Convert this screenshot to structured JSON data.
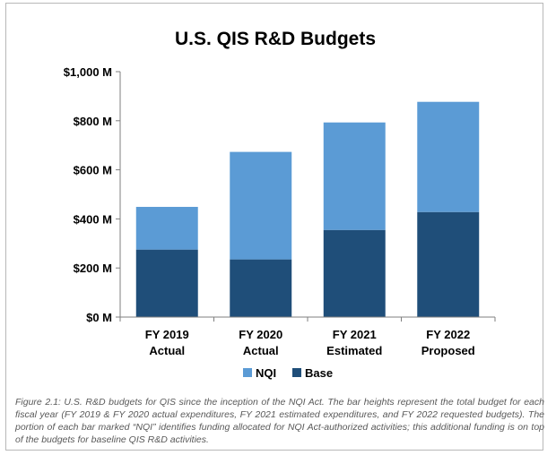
{
  "caption": "Figure 2.1: U.S. R&D budgets for QIS since the inception of the NQI Act. The bar heights represent the total budget for each fiscal year (FY 2019 & FY 2020 actual expenditures, FY 2021 estimated expenditures, and FY 2022 requested budgets). The portion of each bar marked “NQI” identifies funding allocated for NQI Act-authorized activities; this additional funding is on top of the budgets for baseline QIS R&D activities.",
  "chart_data": {
    "type": "bar",
    "stacked": true,
    "title": "U.S. QIS R&D Budgets",
    "categories": [
      [
        "FY 2019",
        "Actual"
      ],
      [
        "FY 2020",
        "Actual"
      ],
      [
        "FY 2021",
        "Estimated"
      ],
      [
        "FY 2022",
        "Proposed"
      ]
    ],
    "series": [
      {
        "name": "Base",
        "color": "#1f4e79",
        "values": [
          275,
          235,
          355,
          428
        ]
      },
      {
        "name": "NQI",
        "color": "#5b9bd5",
        "values": [
          174,
          438,
          438,
          449
        ]
      }
    ],
    "legend_order": [
      "NQI",
      "Base"
    ],
    "legend_position": "bottom",
    "ylim": [
      0,
      1000
    ],
    "yticks": [
      0,
      200,
      400,
      600,
      800,
      1000
    ],
    "ytick_labels": [
      "$0 M",
      "$200 M",
      "$400 M",
      "$600 M",
      "$800 M",
      "$1,000 M"
    ],
    "grid": false,
    "xlabel": "",
    "ylabel": ""
  }
}
